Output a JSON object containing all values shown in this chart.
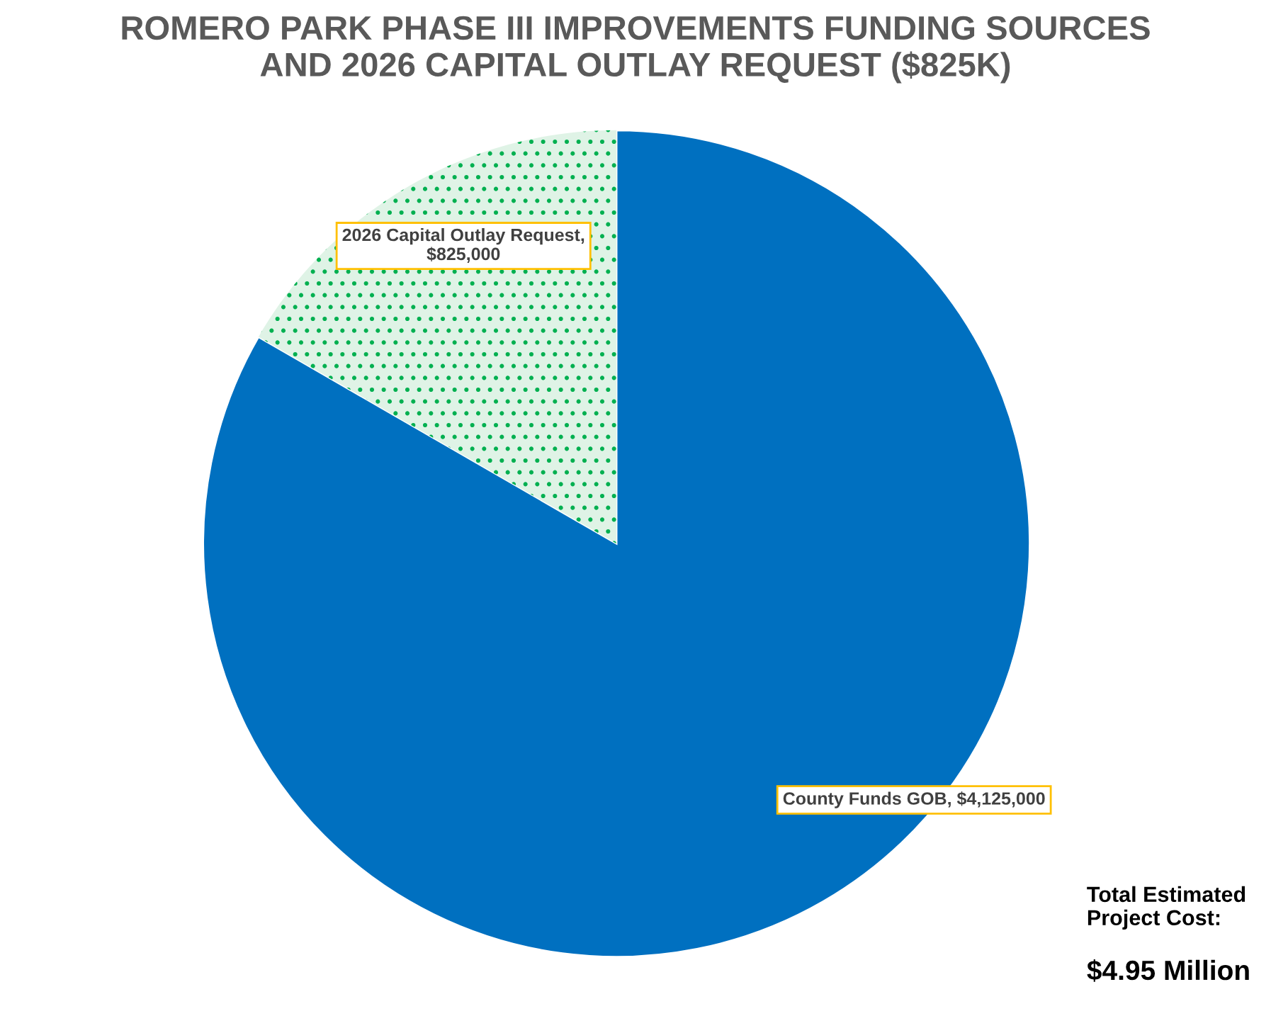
{
  "chart_data": {
    "type": "pie",
    "title": "ROMERO PARK PHASE III IMPROVEMENTS FUNDING SOURCES\nAND 2026 CAPITAL OUTLAY REQUEST ($825K)",
    "categories": [
      "County Funds GOB, $4,125,000",
      "2026 Capital Outlay Request, $825,000"
    ],
    "values": [
      4125000,
      825000
    ],
    "colors": [
      "#0070c0",
      "#dff3e6"
    ],
    "legend": false,
    "annotations": [
      "Total Estimated\nProject Cost:",
      "$4.95 Million"
    ]
  }
}
